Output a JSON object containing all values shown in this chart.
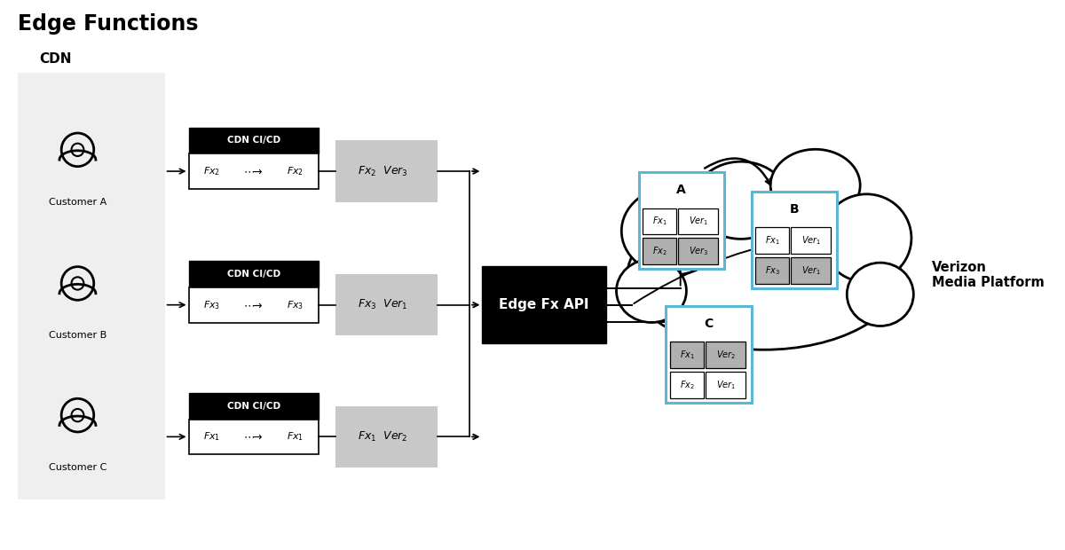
{
  "title": "Edge Functions",
  "cdn_label": "CDN",
  "customers": [
    "Customer A",
    "Customer B",
    "Customer C"
  ],
  "cdn_cicd_label": "CDN CI/CD",
  "fx_labels": [
    {
      "sub_left": "2",
      "sub_right": "2"
    },
    {
      "sub_left": "3",
      "sub_right": "3"
    },
    {
      "sub_left": "1",
      "sub_right": "1"
    }
  ],
  "version_boxes": [
    {
      "sub_main": "2",
      "sub_ver": "3"
    },
    {
      "sub_main": "3",
      "sub_ver": "1"
    },
    {
      "sub_main": "1",
      "sub_ver": "2"
    }
  ],
  "edge_api_label": "Edge Fx API",
  "cloud_label": "Verizon\nMedia Platform",
  "node_A_label": "A",
  "node_B_label": "B",
  "node_C_label": "C",
  "node_A_rows": [
    {
      "fx_sub": "1",
      "ver_sub": "1",
      "fx_gray": false,
      "ver_gray": false
    },
    {
      "fx_sub": "2",
      "ver_sub": "3",
      "fx_gray": true,
      "ver_gray": true
    }
  ],
  "node_B_rows": [
    {
      "fx_sub": "1",
      "ver_sub": "1",
      "fx_gray": false,
      "ver_gray": false
    },
    {
      "fx_sub": "3",
      "ver_sub": "1",
      "fx_gray": true,
      "ver_gray": true
    }
  ],
  "node_C_rows": [
    {
      "fx_sub": "1",
      "ver_sub": "2",
      "fx_gray": true,
      "ver_gray": true
    },
    {
      "fx_sub": "2",
      "ver_sub": "1",
      "fx_gray": false,
      "ver_gray": false
    }
  ],
  "bg_color": "#ffffff",
  "cdn_bg_color": "#efefef",
  "black": "#000000",
  "dark_gray": "#999999",
  "light_gray": "#c8c8c8",
  "cell_gray": "#b0b0b0",
  "blue": "#5bb8d4",
  "white": "#ffffff"
}
